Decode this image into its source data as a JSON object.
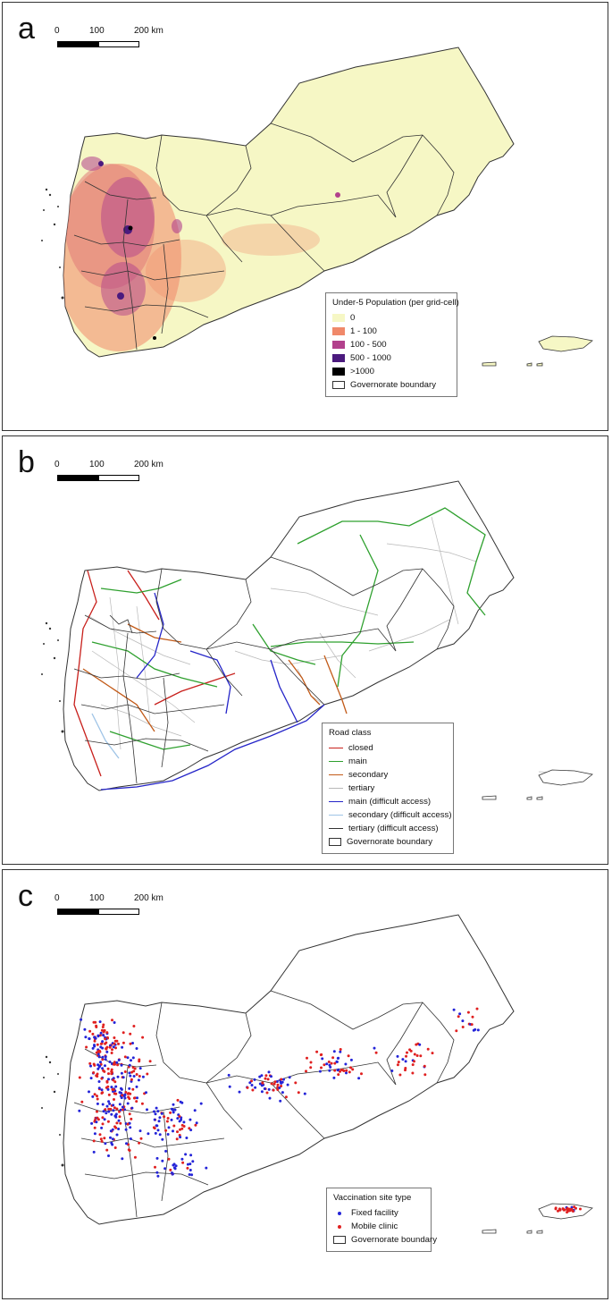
{
  "scale": {
    "zero": "0",
    "mid": "100",
    "end": "200 km"
  },
  "colors": {
    "boundary": "#333333",
    "pop_0": "#f6f7c5",
    "pop_1_100": "#f0896a",
    "pop_100_500": "#b2418c",
    "pop_500_1000": "#4b1a7e",
    "pop_gt_1000": "#000000",
    "road_closed": "#c8201c",
    "road_main": "#2ea02e",
    "road_secondary": "#c25a18",
    "road_tertiary": "#b8b8b8",
    "road_main_difficult": "#2424c8",
    "road_secondary_difficult": "#9fc4e6",
    "road_tertiary_difficult": "#333333",
    "site_fixed": "#2424d8",
    "site_mobile": "#e02020"
  },
  "panels": [
    {
      "letter": "a",
      "legend": {
        "title": "Under-5 Population (per grid-cell)",
        "items": [
          "0",
          "1 - 100",
          "100 - 500",
          "500 - 1000",
          ">1000",
          "Governorate boundary"
        ]
      }
    },
    {
      "letter": "b",
      "legend": {
        "title": "Road class",
        "items": [
          "closed",
          "main",
          "secondary",
          "tertiary",
          "main (difficult access)",
          "secondary (difficult access)",
          "tertiary (difficult access)",
          "Governorate boundary"
        ]
      }
    },
    {
      "letter": "c",
      "legend": {
        "title": "Vaccination site type",
        "items": [
          "Fixed facility",
          "Mobile clinic",
          "Governorate boundary"
        ]
      }
    }
  ]
}
